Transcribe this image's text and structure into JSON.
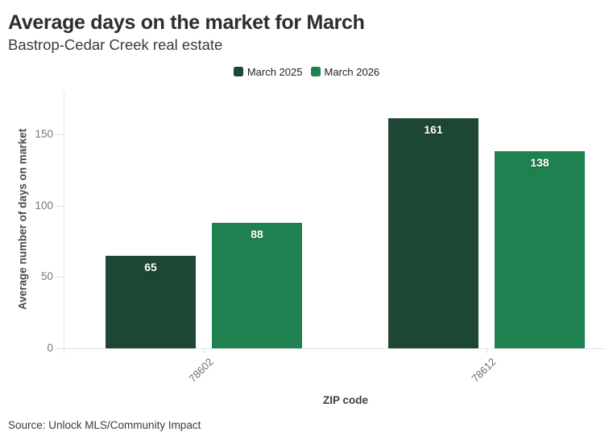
{
  "header": {
    "title": "Average days on the market for March",
    "subtitle": "Bastrop-Cedar Creek real estate"
  },
  "footer": {
    "source": "Source: Unlock MLS/Community Impact"
  },
  "chart_data": {
    "type": "bar",
    "title": "Average days on the market for March",
    "subtitle": "Bastrop-Cedar Creek real estate",
    "categories": [
      "78602",
      "78612"
    ],
    "series": [
      {
        "name": "March 2025",
        "color": "#1d4732",
        "values": [
          65,
          161
        ]
      },
      {
        "name": "March 2026",
        "color": "#1f8150",
        "values": [
          88,
          138
        ]
      }
    ],
    "xlabel": "ZIP code",
    "ylabel": "Average number of days on market",
    "yticks": [
      0,
      50,
      100,
      150
    ],
    "ylim": [
      0,
      180
    ],
    "grid": false,
    "legend_position": "top-center",
    "bar_labels": true,
    "bar_label_color": "#ffffff",
    "source": "Source: Unlock MLS/Community Impact"
  }
}
